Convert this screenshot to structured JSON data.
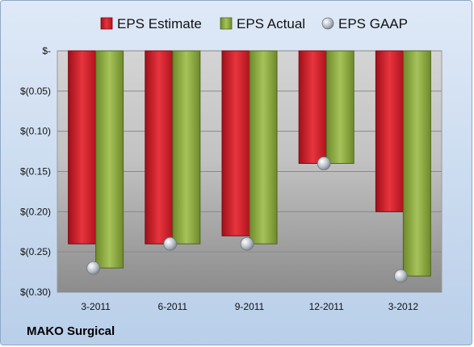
{
  "chart_data": {
    "type": "bar",
    "categories": [
      "3-2011",
      "6-2011",
      "9-2011",
      "12-2011",
      "3-2012"
    ],
    "series": [
      {
        "name": "EPS Estimate",
        "values": [
          -0.24,
          -0.24,
          -0.23,
          -0.14,
          -0.2
        ],
        "color": "#d0202b",
        "mark": "bar"
      },
      {
        "name": "EPS Actual",
        "values": [
          -0.27,
          -0.24,
          -0.24,
          -0.14,
          -0.28
        ],
        "color": "#8aaa3a",
        "mark": "bar"
      },
      {
        "name": "EPS GAAP",
        "values": [
          -0.27,
          -0.24,
          -0.24,
          -0.14,
          -0.28
        ],
        "color": "#c0c6cc",
        "mark": "circle"
      }
    ],
    "ylim": [
      -0.3,
      0
    ],
    "yticks": [
      {
        "value": 0,
        "label": "$-"
      },
      {
        "value": -0.05,
        "label": "$(0.05)"
      },
      {
        "value": -0.1,
        "label": "$(0.10)"
      },
      {
        "value": -0.15,
        "label": "$(0.15)"
      },
      {
        "value": -0.2,
        "label": "$(0.20)"
      },
      {
        "value": -0.25,
        "label": "$(0.25)"
      },
      {
        "value": -0.3,
        "label": "$(0.30)"
      }
    ],
    "grid": true,
    "legend_position": "top"
  },
  "company_label": "MAKO Surgical"
}
